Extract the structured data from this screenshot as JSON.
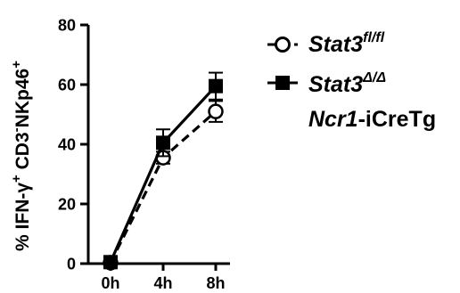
{
  "chart_data": {
    "type": "line",
    "title": "",
    "xlabel": "",
    "ylabel": {
      "main": "% IFN-",
      "gamma": "γ",
      "plus1": "+",
      "cd3": " CD3",
      "minus": "-",
      "nk": "NKp46",
      "plus2": "+"
    },
    "categories": [
      "0h",
      "4h",
      "8h"
    ],
    "ylim": [
      0,
      80
    ],
    "yticks": [
      "0",
      "20",
      "40",
      "60",
      "80"
    ],
    "ytick_values": [
      0,
      20,
      40,
      60,
      80
    ],
    "grid": false,
    "legend_position": "top-right",
    "series": [
      {
        "name_parts": {
          "base": "Stat3",
          "sup": "fl/fl",
          "line2_italic": "",
          "line2_rest": ""
        },
        "marker": "open-circle",
        "line_style": "dashed",
        "values": [
          0.3,
          35.5,
          51
        ],
        "errors": [
          0.3,
          2.0,
          3.5
        ]
      },
      {
        "name_parts": {
          "base": "Stat3",
          "sup": "Δ/Δ",
          "line2_italic": "Ncr1",
          "line2_rest": "-iCreTg"
        },
        "marker": "filled-square",
        "line_style": "solid",
        "values": [
          0.5,
          40.5,
          59.5
        ],
        "errors": [
          0.3,
          4.5,
          4.5
        ]
      }
    ],
    "colors": {
      "line": "#000000",
      "background": "#ffffff"
    }
  }
}
